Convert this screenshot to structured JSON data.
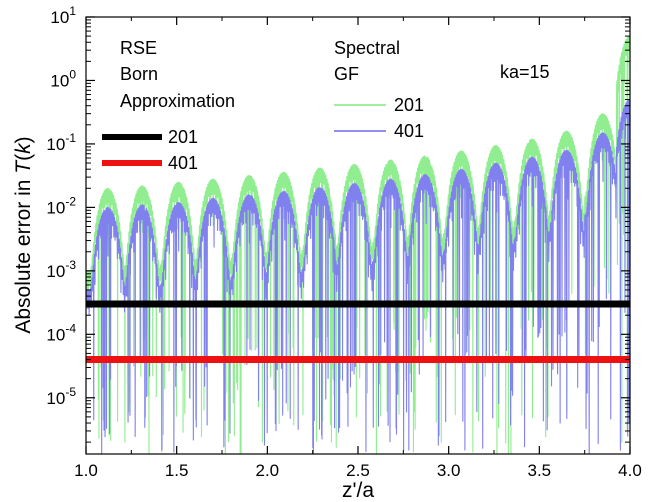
{
  "chart_data": {
    "type": "line",
    "xlabel": "z'/a",
    "ylabel_prefix": "Absolute error in ",
    "ylabel_italic": "T",
    "ylabel_paren_open": "(",
    "ylabel_italic_k": "k",
    "ylabel_paren_close": ")",
    "yscale": "log",
    "xlim": [
      1.0,
      4.0
    ],
    "ylim": [
      1.3e-06,
      10
    ],
    "x_ticks": [
      "1.0",
      "1.5",
      "2.0",
      "2.5",
      "3.0",
      "3.5",
      "4.0"
    ],
    "x_tick_values": [
      1.0,
      1.5,
      2.0,
      2.5,
      3.0,
      3.5,
      4.0
    ],
    "y_ticks": [
      {
        "base": "10",
        "exp": "1",
        "value": 10
      },
      {
        "base": "10",
        "exp": "0",
        "value": 1
      },
      {
        "base": "10",
        "exp": "-1",
        "value": 0.1
      },
      {
        "base": "10",
        "exp": "-2",
        "value": 0.01
      },
      {
        "base": "10",
        "exp": "-3",
        "value": 0.001
      },
      {
        "base": "10",
        "exp": "-4",
        "value": 0.0001
      },
      {
        "base": "10",
        "exp": "-5",
        "value": 1e-05
      }
    ],
    "annotation": "ka=15",
    "legend_rse": {
      "title_lines": [
        "RSE",
        "Born",
        "Approximation"
      ],
      "entries": [
        {
          "label": "201",
          "color": "#000000"
        },
        {
          "label": "401",
          "color": "#ee1111"
        }
      ]
    },
    "legend_spectral": {
      "title_lines": [
        "Spectral",
        "GF"
      ],
      "entries": [
        {
          "label": "201",
          "color": "#90ee90"
        },
        {
          "label": "401",
          "color": "#8080ee"
        }
      ]
    },
    "series": [
      {
        "name": "RSE Born Approximation 201",
        "color": "#000000",
        "constant_value": 0.0003,
        "x": [
          1.0,
          4.0
        ]
      },
      {
        "name": "RSE Born Approximation 401",
        "color": "#ee1111",
        "constant_value": 4e-05,
        "x": [
          1.0,
          4.0
        ]
      },
      {
        "name": "Spectral GF 201",
        "color": "#90ee90",
        "envelope_peaks_x": [
          1.12,
          1.31,
          1.51,
          1.7,
          1.9,
          2.09,
          2.29,
          2.48,
          2.68,
          2.87,
          3.07,
          3.26,
          3.46,
          3.65,
          3.85,
          4.0
        ],
        "envelope_peaks_y": [
          0.02,
          0.022,
          0.025,
          0.028,
          0.032,
          0.036,
          0.042,
          0.048,
          0.056,
          0.065,
          0.078,
          0.095,
          0.12,
          0.16,
          0.3,
          5.0
        ],
        "fine_oscillation_period": 0.013,
        "minimum_floor": 2e-06
      },
      {
        "name": "Spectral GF 401",
        "color": "#8080ee",
        "envelope_peaks_x": [
          1.12,
          1.31,
          1.51,
          1.7,
          1.9,
          2.09,
          2.29,
          2.48,
          2.68,
          2.87,
          3.07,
          3.26,
          3.46,
          3.65,
          3.85,
          4.0
        ],
        "envelope_peaks_y": [
          0.01,
          0.011,
          0.012,
          0.014,
          0.016,
          0.018,
          0.021,
          0.024,
          0.028,
          0.033,
          0.04,
          0.05,
          0.062,
          0.08,
          0.15,
          0.5
        ],
        "fine_oscillation_period": 0.013,
        "minimum_floor": 1.5e-06
      }
    ]
  }
}
